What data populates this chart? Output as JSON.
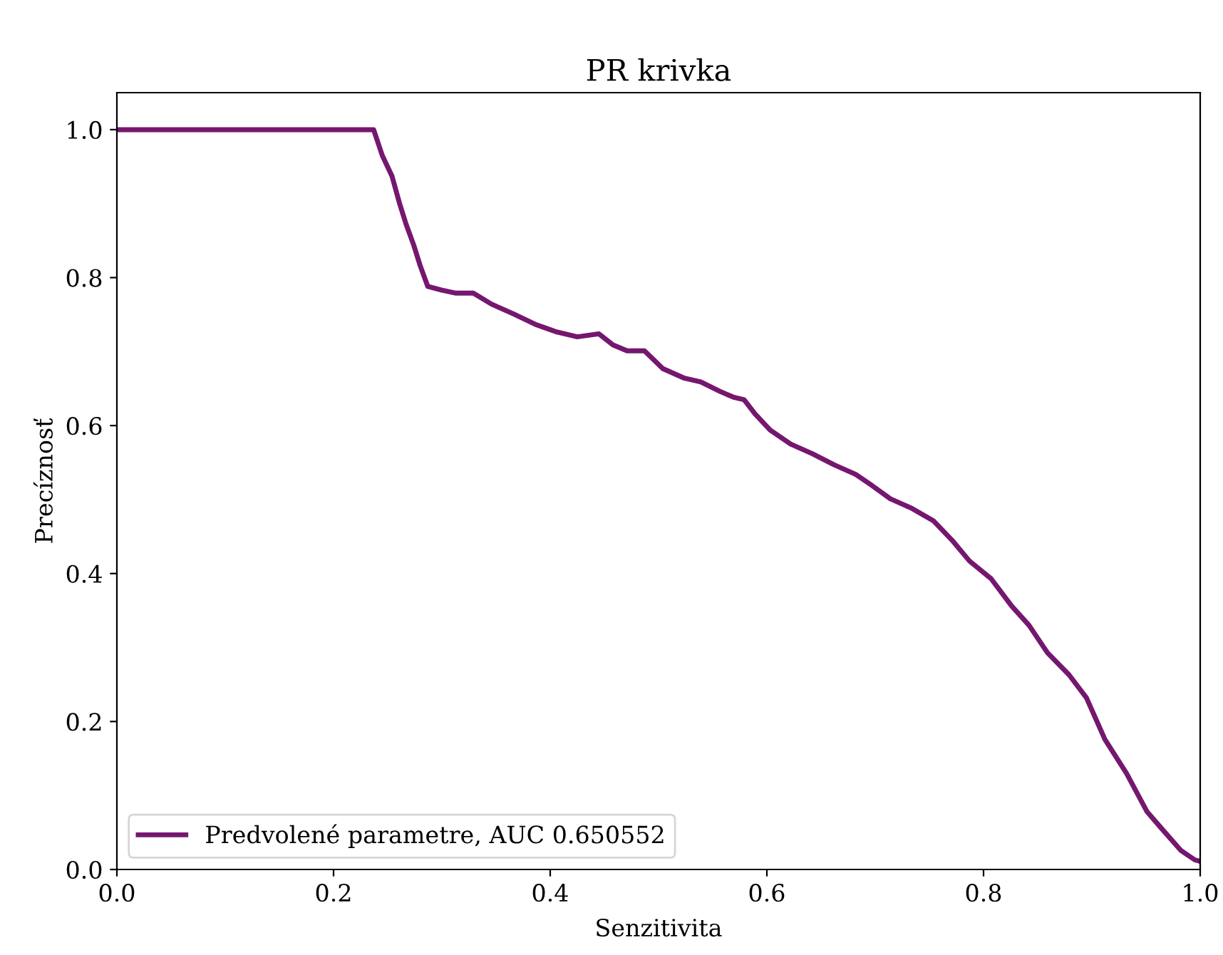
{
  "chart_data": {
    "type": "line",
    "title": "PR krivka",
    "xlabel": "Senzitivita",
    "ylabel": "Precíznosť",
    "xlim": [
      0,
      1
    ],
    "ylim": [
      0,
      1.05
    ],
    "xticks": [
      {
        "value": 0,
        "label": "0.0"
      },
      0.2,
      0.4,
      0.6,
      0.8,
      {
        "value": 1,
        "label": "1.0"
      }
    ],
    "yticks": [
      {
        "value": 0,
        "label": "0.0"
      },
      0.2,
      0.4,
      0.6,
      0.8,
      {
        "value": 1,
        "label": "1.0"
      }
    ],
    "grid": false,
    "legend": "bottom left",
    "line_style": "solid",
    "marker": "none",
    "series": [
      {
        "name": "Predvolené parametre, AUC 0.650552",
        "color": "#75176f",
        "x": [
          0,
          0.237,
          0.245,
          0.254,
          0.261,
          0.267,
          0.274,
          0.28,
          0.287,
          0.3,
          0.313,
          0.329,
          0.346,
          0.366,
          0.386,
          0.405,
          0.425,
          0.445,
          0.458,
          0.471,
          0.487,
          0.504,
          0.524,
          0.539,
          0.557,
          0.57,
          0.579,
          0.589,
          0.603,
          0.622,
          0.642,
          0.662,
          0.682,
          0.697,
          0.714,
          0.734,
          0.754,
          0.771,
          0.787,
          0.807,
          0.826,
          0.842,
          0.859,
          0.879,
          0.895,
          0.912,
          0.932,
          0.951,
          0.964,
          0.982,
          0.995,
          1.0
        ],
        "values": [
          1.0,
          1.0,
          0.965,
          0.937,
          0.9,
          0.872,
          0.844,
          0.816,
          0.788,
          0.783,
          0.779,
          0.779,
          0.764,
          0.751,
          0.737,
          0.727,
          0.72,
          0.724,
          0.709,
          0.701,
          0.701,
          0.677,
          0.664,
          0.659,
          0.646,
          0.638,
          0.635,
          0.616,
          0.594,
          0.575,
          0.562,
          0.547,
          0.534,
          0.519,
          0.501,
          0.488,
          0.471,
          0.445,
          0.417,
          0.393,
          0.356,
          0.33,
          0.293,
          0.263,
          0.232,
          0.176,
          0.13,
          0.078,
          0.056,
          0.026,
          0.013,
          0.011
        ]
      }
    ]
  }
}
